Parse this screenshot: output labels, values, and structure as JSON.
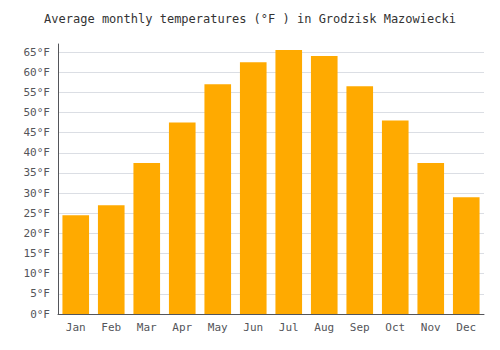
{
  "chart_data": {
    "type": "bar",
    "title": "Average monthly temperatures (°F ) in Grodzisk Mazowiecki",
    "categories": [
      "Jan",
      "Feb",
      "Mar",
      "Apr",
      "May",
      "Jun",
      "Jul",
      "Aug",
      "Sep",
      "Oct",
      "Nov",
      "Dec"
    ],
    "values": [
      24.5,
      27.0,
      37.5,
      47.5,
      57.0,
      62.5,
      65.5,
      64.0,
      56.5,
      48.0,
      37.5,
      29.0
    ],
    "color": "#FFAA00",
    "ylim": [
      0,
      67
    ],
    "yticks": [
      {
        "value": 0,
        "label": "0°F"
      },
      {
        "value": 5,
        "label": "5°F"
      },
      {
        "value": 10,
        "label": "10°F"
      },
      {
        "value": 15,
        "label": "15°F"
      },
      {
        "value": 20,
        "label": "20°F"
      },
      {
        "value": 25,
        "label": "25°F"
      },
      {
        "value": 30,
        "label": "30°F"
      },
      {
        "value": 35,
        "label": "35°F"
      },
      {
        "value": 40,
        "label": "40°F"
      },
      {
        "value": 45,
        "label": "45°F"
      },
      {
        "value": 50,
        "label": "50°F"
      },
      {
        "value": 55,
        "label": "55°F"
      },
      {
        "value": 60,
        "label": "60°F"
      },
      {
        "value": 65,
        "label": "65°F"
      }
    ],
    "grid": true
  }
}
